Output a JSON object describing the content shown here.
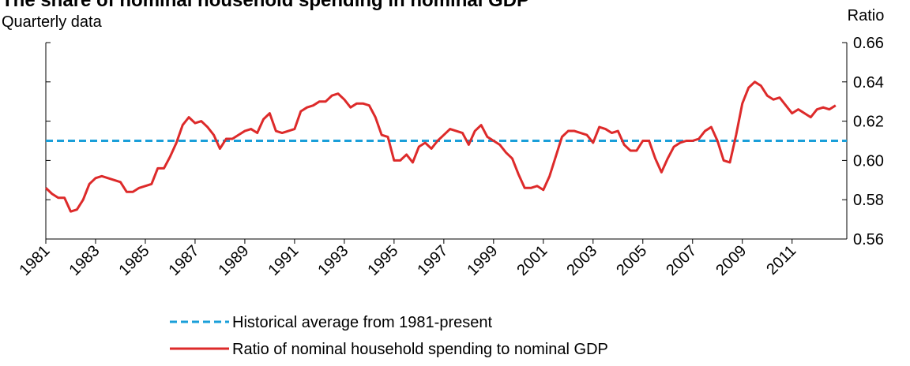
{
  "chart_data": {
    "type": "line",
    "title": "The share of nominal household spending in nominal GDP",
    "subtitle": "Quarterly data",
    "y_axis_label": "Ratio",
    "xlim": [
      1981,
      2013.2
    ],
    "xticks": [
      1981,
      1983,
      1985,
      1987,
      1989,
      1991,
      1993,
      1995,
      1997,
      1999,
      2001,
      2003,
      2005,
      2007,
      2009,
      2011
    ],
    "ylim": [
      0.56,
      0.66
    ],
    "yticks": [
      0.56,
      0.58,
      {
        "value": 0.6,
        "label": "0.60"
      },
      0.62,
      0.64,
      0.66
    ],
    "reference_line": {
      "name": "Historical average from 1981-present",
      "color": "#1a9fd9",
      "value": 0.61
    },
    "x": [
      1981,
      1981.25,
      1981.5,
      1981.75,
      1982,
      1982.25,
      1982.5,
      1982.75,
      1983,
      1983.25,
      1983.5,
      1983.75,
      1984,
      1984.25,
      1984.5,
      1984.75,
      1985,
      1985.25,
      1985.5,
      1985.75,
      1986,
      1986.25,
      1986.5,
      1986.75,
      1987,
      1987.25,
      1987.5,
      1987.75,
      1988,
      1988.25,
      1988.5,
      1988.75,
      1989,
      1989.25,
      1989.5,
      1989.75,
      1990,
      1990.25,
      1990.5,
      1990.75,
      1991,
      1991.25,
      1991.5,
      1991.75,
      1992,
      1992.25,
      1992.5,
      1992.75,
      1993,
      1993.25,
      1993.5,
      1993.75,
      1994,
      1994.25,
      1994.5,
      1994.75,
      1995,
      1995.25,
      1995.5,
      1995.75,
      1996,
      1996.25,
      1996.5,
      1996.75,
      1997,
      1997.25,
      1997.5,
      1997.75,
      1998,
      1998.25,
      1998.5,
      1998.75,
      1999,
      1999.25,
      1999.5,
      1999.75,
      2000,
      2000.25,
      2000.5,
      2000.75,
      2001,
      2001.25,
      2001.5,
      2001.75,
      2002,
      2002.25,
      2002.5,
      2002.75,
      2003,
      2003.25,
      2003.5,
      2003.75,
      2004,
      2004.25,
      2004.5,
      2004.75,
      2005,
      2005.25,
      2005.5,
      2005.75,
      2006,
      2006.25,
      2006.5,
      2006.75,
      2007,
      2007.25,
      2007.5,
      2007.75,
      2008,
      2008.25,
      2008.5,
      2008.75,
      2009,
      2009.25,
      2009.5,
      2009.75,
      2010,
      2010.25,
      2010.5,
      2010.75,
      2011,
      2011.25,
      2011.5,
      2011.75,
      2012,
      2012.25,
      2012.5,
      2012.75
    ],
    "series": [
      {
        "name": "Ratio of nominal household spending to nominal GDP",
        "color": "#dd2a2a",
        "values": [
          0.586,
          0.583,
          0.581,
          0.581,
          0.574,
          0.575,
          0.58,
          0.588,
          0.591,
          0.592,
          0.591,
          0.59,
          0.589,
          0.584,
          0.584,
          0.586,
          0.587,
          0.588,
          0.596,
          0.596,
          0.602,
          0.609,
          0.618,
          0.622,
          0.619,
          0.62,
          0.617,
          0.613,
          0.606,
          0.611,
          0.611,
          0.613,
          0.615,
          0.616,
          0.614,
          0.621,
          0.624,
          0.615,
          0.614,
          0.615,
          0.616,
          0.625,
          0.627,
          0.628,
          0.63,
          0.63,
          0.633,
          0.634,
          0.631,
          0.627,
          0.629,
          0.629,
          0.628,
          0.622,
          0.613,
          0.612,
          0.6,
          0.6,
          0.603,
          0.599,
          0.607,
          0.609,
          0.606,
          0.61,
          0.613,
          0.616,
          0.615,
          0.614,
          0.608,
          0.615,
          0.618,
          0.612,
          0.61,
          0.608,
          0.604,
          0.601,
          0.593,
          0.586,
          0.586,
          0.587,
          0.585,
          0.592,
          0.602,
          0.612,
          0.615,
          0.615,
          0.614,
          0.613,
          0.609,
          0.617,
          0.616,
          0.614,
          0.615,
          0.608,
          0.605,
          0.605,
          0.61,
          0.61,
          0.601,
          0.594,
          0.601,
          0.607,
          0.609,
          0.61,
          0.61,
          0.611,
          0.615,
          0.617,
          0.61,
          0.6,
          0.599,
          0.613,
          0.629,
          0.637,
          0.64,
          0.638,
          0.633,
          0.631,
          0.632,
          0.628,
          0.624,
          0.626,
          0.624,
          0.622,
          0.626,
          0.627,
          0.626,
          0.628
        ]
      }
    ]
  }
}
